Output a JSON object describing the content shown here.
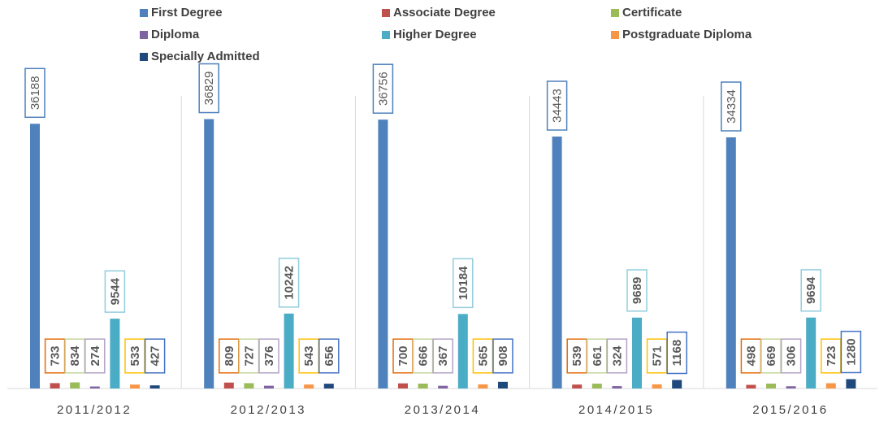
{
  "chart_data": {
    "type": "bar",
    "categories": [
      "2011/2012",
      "2012/2013",
      "2013/2014",
      "2014/2015",
      "2015/2016"
    ],
    "series": [
      {
        "name": "First Degree",
        "color": "#4f81bd",
        "label_border": "#4f81bd",
        "values": [
          36188,
          36829,
          36756,
          34443,
          34334
        ]
      },
      {
        "name": "Associate Degree",
        "color": "#c0504d",
        "label_border": "#e46c0a",
        "values": [
          733,
          809,
          700,
          539,
          498
        ]
      },
      {
        "name": "Certificate",
        "color": "#9bbb59",
        "label_border": "#c3d69b",
        "values": [
          834,
          727,
          666,
          661,
          669
        ]
      },
      {
        "name": "Diploma",
        "color": "#8064a2",
        "label_border": "#b3a2c7",
        "values": [
          274,
          376,
          367,
          324,
          306
        ]
      },
      {
        "name": "Higher Degree",
        "color": "#4bacc6",
        "label_border": "#93cddd",
        "values": [
          9544,
          10242,
          10184,
          9689,
          9694
        ]
      },
      {
        "name": "Postgraduate Diploma",
        "color": "#f79646",
        "label_border": "#ffc000",
        "values": [
          533,
          543,
          565,
          571,
          723
        ]
      },
      {
        "name": "Specially Admitted",
        "color": "#1f497d",
        "label_border": "#4472c4",
        "values": [
          427,
          656,
          908,
          1168,
          1280
        ]
      }
    ],
    "ylim": [
      0,
      40000
    ]
  }
}
